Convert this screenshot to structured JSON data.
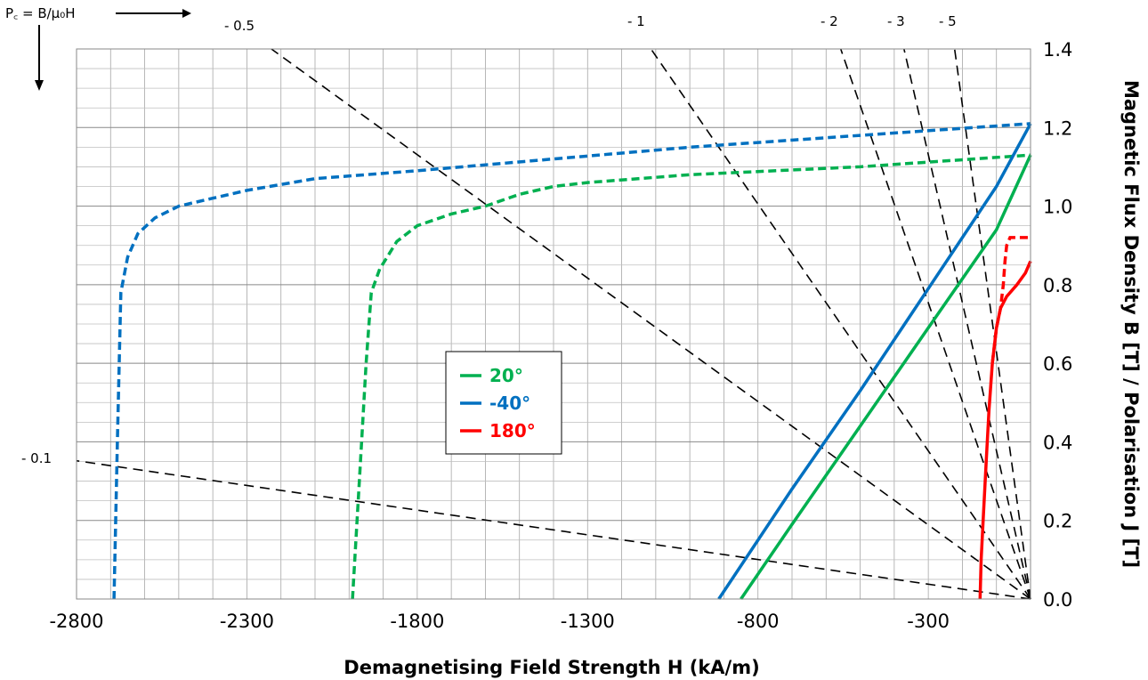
{
  "chart_data": {
    "type": "line",
    "title": "",
    "xlabel": "Demagnetising Field Strength H (kA/m)",
    "ylabel": "Magnetic Flux Density B [T] / Polarisation J [T]",
    "xlim": [
      -2800,
      0
    ],
    "ylim": [
      0,
      1.4
    ],
    "x_ticks": [
      "-2800",
      "-2300",
      "-1800",
      "-1300",
      "-800",
      "-300"
    ],
    "y_ticks": [
      "0.0",
      "0.2",
      "0.4",
      "0.6",
      "0.8",
      "1.0",
      "1.2",
      "1.4"
    ],
    "grid": true,
    "legend_position": "center",
    "permeance_title": "P꜀ = B/μ₀H",
    "permeance_lines": [
      {
        "label": "- 0.1",
        "pc": -0.1
      },
      {
        "label": "- 0.5",
        "pc": -0.5
      },
      {
        "label": "- 1",
        "pc": -1
      },
      {
        "label": "- 2",
        "pc": -2
      },
      {
        "label": "- 3",
        "pc": -3
      },
      {
        "label": "- 5",
        "pc": -5
      }
    ],
    "series": [
      {
        "name": "20°",
        "color": "#00b050",
        "B": [
          [
            -850,
            0.0
          ],
          [
            -700,
            0.19
          ],
          [
            -500,
            0.44
          ],
          [
            -300,
            0.69
          ],
          [
            -100,
            0.94
          ],
          [
            0,
            1.13
          ]
        ],
        "J": [
          [
            -1990,
            0.0
          ],
          [
            -1970,
            0.3
          ],
          [
            -1950,
            0.6
          ],
          [
            -1935,
            0.78
          ],
          [
            -1910,
            0.84
          ],
          [
            -1860,
            0.91
          ],
          [
            -1800,
            0.95
          ],
          [
            -1700,
            0.98
          ],
          [
            -1600,
            1.0
          ],
          [
            -1500,
            1.03
          ],
          [
            -1400,
            1.05
          ],
          [
            -1300,
            1.06
          ],
          [
            -1000,
            1.08
          ],
          [
            -500,
            1.1
          ],
          [
            0,
            1.13
          ]
        ]
      },
      {
        "name": "-40°",
        "color": "#0070c0",
        "B": [
          [
            -915,
            0.0
          ],
          [
            -700,
            0.28
          ],
          [
            -500,
            0.53
          ],
          [
            -300,
            0.79
          ],
          [
            -100,
            1.05
          ],
          [
            0,
            1.21
          ]
        ],
        "J": [
          [
            -2690,
            0.0
          ],
          [
            -2680,
            0.4
          ],
          [
            -2670,
            0.78
          ],
          [
            -2650,
            0.87
          ],
          [
            -2620,
            0.93
          ],
          [
            -2570,
            0.97
          ],
          [
            -2500,
            1.0
          ],
          [
            -2400,
            1.02
          ],
          [
            -2300,
            1.04
          ],
          [
            -2100,
            1.07
          ],
          [
            -1800,
            1.09
          ],
          [
            -1400,
            1.12
          ],
          [
            -1000,
            1.15
          ],
          [
            -500,
            1.18
          ],
          [
            0,
            1.21
          ]
        ]
      },
      {
        "name": "180°",
        "color": "#ff0000",
        "B": [
          [
            -148,
            0.0
          ],
          [
            -145,
            0.1
          ],
          [
            -138,
            0.22
          ],
          [
            -130,
            0.35
          ],
          [
            -122,
            0.48
          ],
          [
            -112,
            0.6
          ],
          [
            -100,
            0.69
          ],
          [
            -88,
            0.74
          ],
          [
            -70,
            0.77
          ],
          [
            -40,
            0.8
          ],
          [
            -15,
            0.83
          ],
          [
            0,
            0.86
          ]
        ],
        "J": [
          [
            -112,
            0.6
          ],
          [
            -100,
            0.69
          ],
          [
            -88,
            0.74
          ],
          [
            -80,
            0.8
          ],
          [
            -75,
            0.86
          ],
          [
            -70,
            0.9
          ],
          [
            -60,
            0.92
          ],
          [
            -30,
            0.92
          ],
          [
            0,
            0.92
          ]
        ]
      }
    ]
  }
}
